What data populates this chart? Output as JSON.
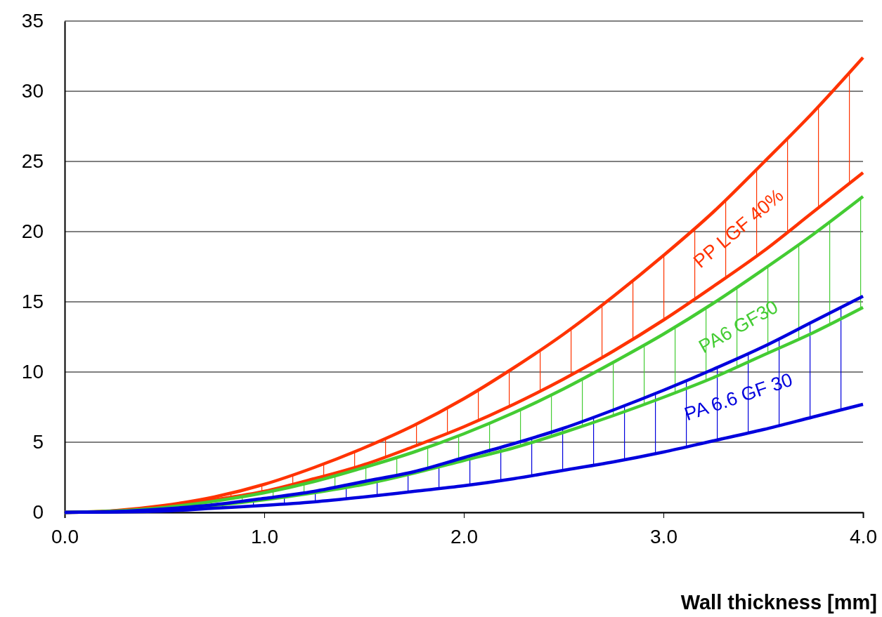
{
  "chart_data": {
    "type": "line",
    "xlabel": "Wall thickness  [mm]",
    "x": [
      0,
      0.25,
      0.5,
      0.75,
      1,
      1.25,
      1.5,
      1.75,
      2,
      2.25,
      2.5,
      2.75,
      3,
      3.25,
      3.5,
      3.75,
      4
    ],
    "xlim": [
      0,
      4
    ],
    "xticks": [
      {
        "value": 0,
        "label": "0.0"
      },
      {
        "value": 1,
        "label": "1.0"
      },
      {
        "value": 2,
        "label": "2.0"
      },
      {
        "value": 3,
        "label": "3.0"
      },
      {
        "value": 4,
        "label": "4.0"
      }
    ],
    "ylim": [
      0,
      35
    ],
    "yticks": [
      0,
      5,
      10,
      15,
      20,
      25,
      30,
      35
    ],
    "grid": "y",
    "legend": false,
    "marker": "none",
    "line_style": "solid",
    "series": [
      {
        "name": "PP LGF 40%",
        "color": "#ff3300",
        "values": [
          0,
          0.13,
          0.5,
          1.1,
          2.0,
          3.2,
          4.6,
          6.2,
          8.1,
          10.3,
          12.7,
          15.4,
          18.3,
          21.4,
          24.9,
          28.5,
          32.4
        ],
        "upper": [
          0,
          0.13,
          0.5,
          1.1,
          2.0,
          3.2,
          4.6,
          6.2,
          8.1,
          10.3,
          12.7,
          15.4,
          18.3,
          21.4,
          24.9,
          28.5,
          32.4
        ],
        "lower": [
          0,
          0.1,
          0.4,
          0.9,
          1.5,
          2.4,
          3.4,
          4.7,
          6.1,
          7.7,
          9.5,
          11.5,
          13.7,
          16.1,
          18.6,
          21.4,
          24.2
        ]
      },
      {
        "color": "#ff3300",
        "values": [
          0,
          0.1,
          0.4,
          0.9,
          1.5,
          2.4,
          3.4,
          4.7,
          6.1,
          7.7,
          9.5,
          11.5,
          13.7,
          16.1,
          18.6,
          21.4,
          24.2
        ]
      },
      {
        "name": "PA6 GF30",
        "color": "#44cc33",
        "values": [
          0,
          0.1,
          0.35,
          0.8,
          1.4,
          2.2,
          3.2,
          4.3,
          5.6,
          7.1,
          8.8,
          10.7,
          12.7,
          14.9,
          17.3,
          19.8,
          22.5
        ],
        "upper": [
          0,
          0.1,
          0.35,
          0.8,
          1.4,
          2.2,
          3.2,
          4.3,
          5.6,
          7.1,
          8.8,
          10.7,
          12.7,
          14.9,
          17.3,
          19.8,
          22.5
        ],
        "lower": [
          0,
          0.06,
          0.2,
          0.5,
          0.9,
          1.4,
          2.0,
          2.8,
          3.7,
          4.6,
          5.7,
          6.9,
          8.2,
          9.6,
          11.2,
          12.8,
          14.6
        ]
      },
      {
        "color": "#44cc33",
        "values": [
          0,
          0.06,
          0.2,
          0.5,
          0.9,
          1.4,
          2.0,
          2.8,
          3.7,
          4.6,
          5.7,
          6.9,
          8.2,
          9.6,
          11.2,
          12.8,
          14.6
        ]
      },
      {
        "name": "PA 6.6 GF 30",
        "color": "#0000dd",
        "values": [
          0,
          0.06,
          0.25,
          0.55,
          1.0,
          1.5,
          2.2,
          2.9,
          3.9,
          4.9,
          6.0,
          7.3,
          8.7,
          10.2,
          11.8,
          13.6,
          15.4
        ],
        "upper": [
          0,
          0.06,
          0.25,
          0.55,
          1.0,
          1.5,
          2.2,
          2.9,
          3.9,
          4.9,
          6.0,
          7.3,
          8.7,
          10.2,
          11.8,
          13.6,
          15.4
        ],
        "lower": [
          0,
          0.03,
          0.1,
          0.3,
          0.5,
          0.75,
          1.1,
          1.5,
          1.9,
          2.4,
          3.0,
          3.6,
          4.3,
          5.1,
          5.9,
          6.8,
          7.7
        ]
      },
      {
        "color": "#0000dd",
        "values": [
          0,
          0.03,
          0.1,
          0.3,
          0.5,
          0.75,
          1.1,
          1.5,
          1.9,
          2.4,
          3.0,
          3.6,
          4.3,
          5.1,
          5.9,
          6.8,
          7.7
        ]
      }
    ]
  }
}
